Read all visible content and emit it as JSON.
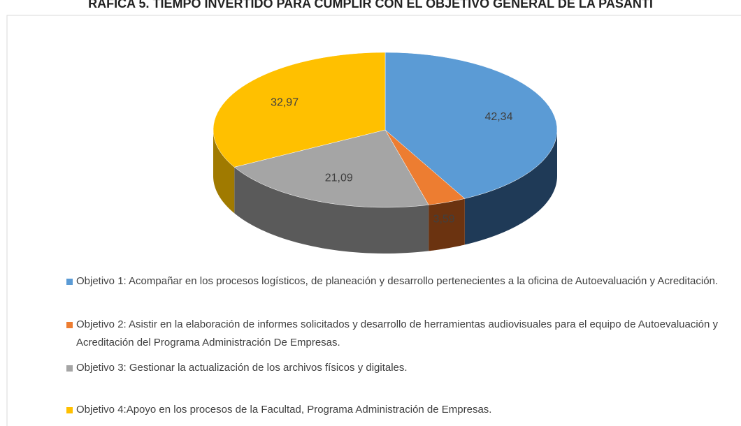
{
  "chart_data": {
    "type": "pie3d",
    "title": "RÁFICA 5. TIEMPO INVERTIDO PARA CUMPLIR CON EL OBJETIVO GENERAL DE LA PASANTÍ",
    "categories": [
      "Objetivo 1: Acompañar en los procesos logísticos, de planeación y desarrollo pertenecientes a la oficina de Autoevaluación y Acreditación.",
      "Objetivo 2: Asistir en la elaboración de informes solicitados y desarrollo de herramientas audiovisuales para el equipo de Autoevaluación y Acreditación del Programa Administración De Empresas.",
      "Objetivo 3: Gestionar la actualización de los archivos físicos y digitales.",
      "Objetivo 4:Apoyo en los procesos de la Facultad, Programa Administración de Empresas."
    ],
    "values": [
      42.34,
      3.59,
      21.09,
      32.97
    ],
    "value_labels": [
      "42,34",
      "3,59",
      "21,09",
      "32,97"
    ],
    "colors": [
      "#5b9bd5",
      "#ed7d31",
      "#a5a5a5",
      "#ffc000"
    ],
    "side_colors": [
      "#1f3a57",
      "#6b3310",
      "#5a5a5a",
      "#a07a00"
    ]
  }
}
